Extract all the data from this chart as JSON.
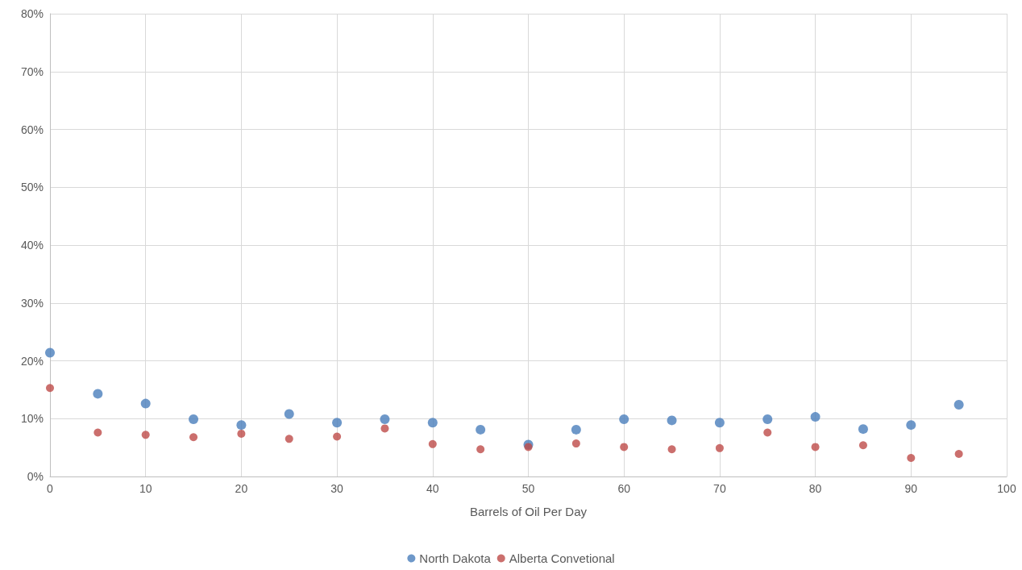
{
  "chart_data": {
    "type": "scatter",
    "xlabel": "Barrels of Oil Per Day",
    "x": [
      0,
      5,
      10,
      15,
      20,
      25,
      30,
      35,
      40,
      45,
      50,
      55,
      60,
      65,
      70,
      75,
      80,
      85,
      90,
      95
    ],
    "series": [
      {
        "name": "North Dakota",
        "color": "#4a7ebb",
        "values": [
          21.4,
          14.3,
          12.6,
          9.9,
          8.9,
          10.8,
          9.3,
          9.9,
          9.3,
          8.1,
          5.5,
          8.1,
          9.9,
          9.7,
          9.3,
          9.9,
          10.3,
          8.2,
          8.9,
          12.4
        ]
      },
      {
        "name": "Alberta Convetional",
        "color": "#be4b48",
        "values": [
          15.3,
          7.6,
          7.2,
          6.8,
          7.4,
          6.5,
          6.9,
          8.3,
          5.6,
          4.7,
          5.1,
          5.7,
          5.1,
          4.7,
          4.9,
          7.6,
          5.1,
          5.4,
          3.2,
          3.9
        ]
      }
    ],
    "xlim": [
      0,
      100
    ],
    "xticks": [
      0,
      10,
      20,
      30,
      40,
      50,
      60,
      70,
      80,
      90,
      100
    ],
    "ylim": [
      0,
      80
    ],
    "yticks": [
      {
        "value": 0,
        "label": "0%"
      },
      {
        "value": 10,
        "label": "10%"
      },
      {
        "value": 20,
        "label": "20%"
      },
      {
        "value": 30,
        "label": "30%"
      },
      {
        "value": 40,
        "label": "40%"
      },
      {
        "value": 50,
        "label": "50%"
      },
      {
        "value": 60,
        "label": "60%"
      },
      {
        "value": 70,
        "label": "70%"
      },
      {
        "value": 80,
        "label": "80%"
      }
    ],
    "grid": true,
    "legend": "bottom",
    "marker": "circle"
  }
}
